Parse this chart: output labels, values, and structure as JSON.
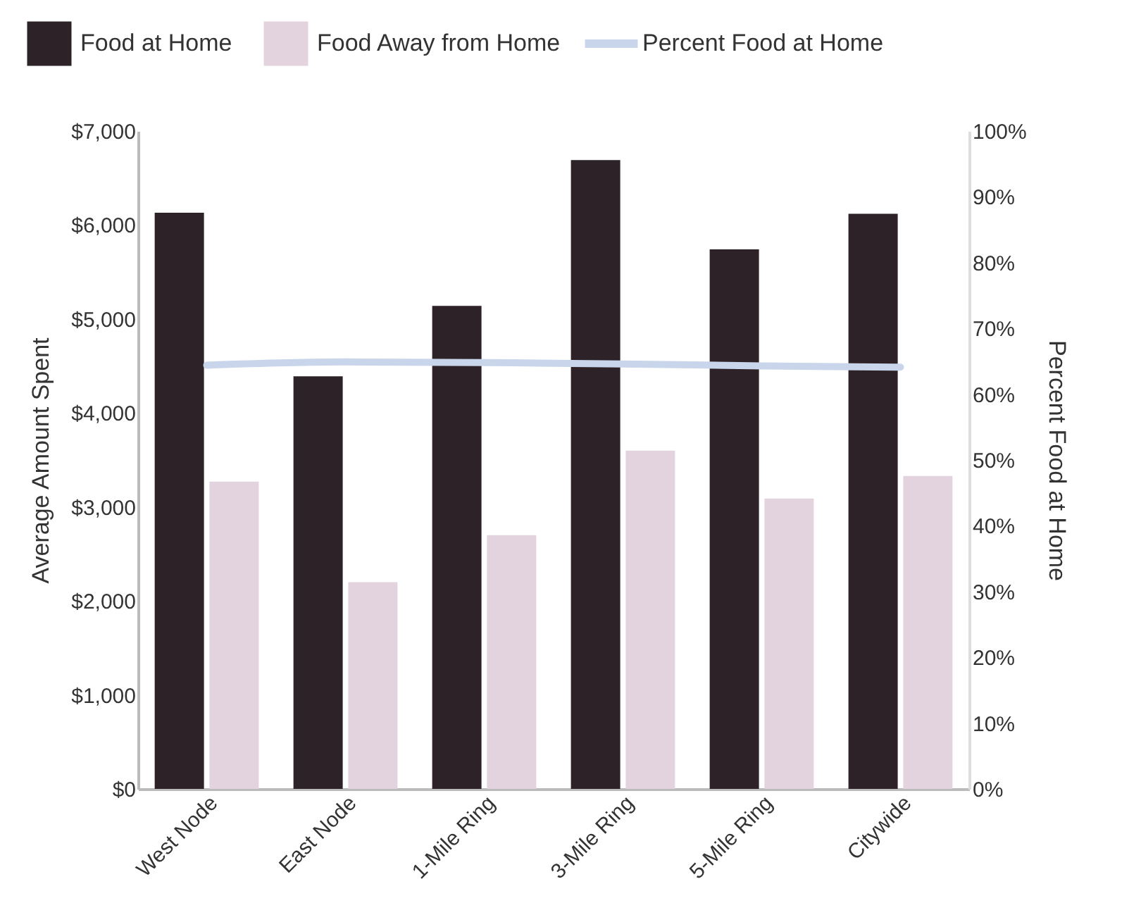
{
  "chart_data": {
    "type": "bar",
    "categories": [
      "West Node",
      "East Node",
      "1-Mile Ring",
      "3-Mile Ring",
      "5-Mile Ring",
      "Citywide"
    ],
    "series": [
      {
        "name": "Food at Home",
        "color": "#2e2229",
        "values": [
          6130,
          4390,
          5140,
          6690,
          5740,
          6120
        ]
      },
      {
        "name": "Food Away from Home",
        "color": "#e3d3de",
        "values": [
          3270,
          2200,
          2700,
          3600,
          3090,
          3330
        ]
      },
      {
        "name": "Percent Food at Home",
        "color": "#c9d5ea",
        "type": "line",
        "axis": "y2",
        "marker": "none",
        "values": [
          64.4,
          64.9,
          64.8,
          64.6,
          64.3,
          64.1
        ]
      }
    ],
    "ylabel": "Average Amount Spent",
    "y2label": "Percent Food at Home",
    "ylim": [
      0,
      7000
    ],
    "yticks": [
      {
        "value": 0,
        "label": "$0"
      },
      {
        "value": 1000,
        "label": "$1,000"
      },
      {
        "value": 2000,
        "label": "$2,000"
      },
      {
        "value": 3000,
        "label": "$3,000"
      },
      {
        "value": 4000,
        "label": "$4,000"
      },
      {
        "value": 5000,
        "label": "$5,000"
      },
      {
        "value": 6000,
        "label": "$6,000"
      },
      {
        "value": 7000,
        "label": "$7,000"
      }
    ],
    "y2lim": [
      0,
      100
    ],
    "y2ticks": [
      {
        "value": 0,
        "label": "0%"
      },
      {
        "value": 10,
        "label": "10%"
      },
      {
        "value": 20,
        "label": "20%"
      },
      {
        "value": 30,
        "label": "30%"
      },
      {
        "value": 40,
        "label": "40%"
      },
      {
        "value": 50,
        "label": "50%"
      },
      {
        "value": 60,
        "label": "60%"
      },
      {
        "value": 70,
        "label": "70%"
      },
      {
        "value": 80,
        "label": "80%"
      },
      {
        "value": 90,
        "label": "90%"
      },
      {
        "value": 100,
        "label": "100%"
      }
    ],
    "legend": "top left",
    "grid": false
  }
}
